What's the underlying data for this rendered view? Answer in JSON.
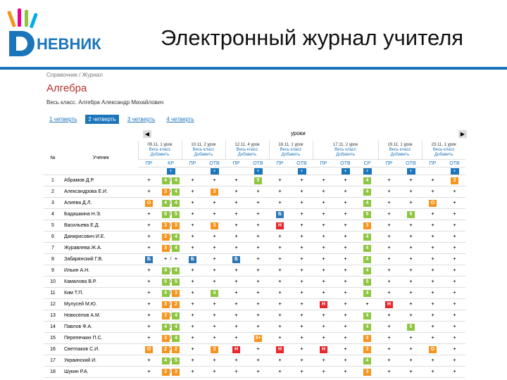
{
  "header": {
    "logo_text": "НЕВНИК",
    "title": "Электронный журнал учителя"
  },
  "breadcrumb": "Справочник / Журнал",
  "subject": "Алгебра",
  "filter": "Весь класс. Алгебра Александр Михайлович",
  "tabs": [
    "1 четверть",
    "2 четверть",
    "3 четверть",
    "4 четверть"
  ],
  "active_tab": 1,
  "nav": {
    "prev": "◀",
    "label": "уроки",
    "next": "▶"
  },
  "table": {
    "num_header": "№",
    "name_header": "Ученик",
    "group_lines": [
      "Весь класс",
      "Добавить"
    ],
    "add_symbol": "+",
    "separator": "/",
    "lessons": [
      {
        "date": "09.11, 1 урок",
        "cols": [
          "ПР",
          "КР"
        ]
      },
      {
        "date": "10.11, 2 урок",
        "cols": [
          "ПР",
          "ОТВ"
        ]
      },
      {
        "date": "12.11, 4 урок",
        "cols": [
          "ПР",
          "ОТВ"
        ]
      },
      {
        "date": "16.11, 1 урок",
        "cols": [
          "ПР",
          "ОТВ"
        ]
      },
      {
        "date": "17.11, 2 урок",
        "cols": [
          "ПР",
          "ОТВ",
          "СР"
        ]
      },
      {
        "date": "19.11, 1 урок",
        "cols": [
          "ПР",
          "ОТВ"
        ]
      },
      {
        "date": "23.11, 1 урок",
        "cols": [
          "ПР",
          "ОТВ"
        ]
      }
    ],
    "mark_colors": {
      "5": "#8dc63f",
      "4": "#8dc63f",
      "3": "#f7941d",
      "2": "#f7941d",
      "3+": "#f7941d",
      "О": "#f7941d",
      "Б": "#2e75b6",
      "Н": "#e8262a"
    },
    "rows": [
      {
        "num": "1",
        "name": "Абрамов Д.Р.",
        "marks": [
          "+",
          [
            "4",
            "4"
          ],
          "+",
          "+",
          "+",
          "5",
          "+",
          "+",
          "+",
          "+",
          "4",
          "+",
          "+",
          "+",
          "3"
        ]
      },
      {
        "num": "2",
        "name": "Александрова Е.И.",
        "marks": [
          "+",
          [
            "3",
            "4"
          ],
          "+",
          "3",
          "+",
          "+",
          "+",
          "+",
          "+",
          "+",
          "4",
          "+",
          "+",
          "+",
          "+"
        ]
      },
      {
        "num": "3",
        "name": "Алиева Д.Л.",
        "marks": [
          "О",
          [
            "4",
            "4"
          ],
          "+",
          "+",
          "+",
          "+",
          "+",
          "+",
          "+",
          "+",
          "4",
          "+",
          "+",
          "О",
          "+"
        ]
      },
      {
        "num": "4",
        "name": "Бадашкина Н.Э.",
        "marks": [
          "+",
          [
            "5",
            "5"
          ],
          "+",
          "+",
          "+",
          "+",
          "Б",
          "+",
          "+",
          "+",
          "5",
          "+",
          "5",
          "+",
          "+"
        ]
      },
      {
        "num": "5",
        "name": "Васильева Е.Д.",
        "marks": [
          "+",
          [
            "3",
            "3"
          ],
          "+",
          "3",
          "+",
          "+",
          "Н",
          "+",
          "+",
          "+",
          "3",
          "+",
          "+",
          "+",
          "+"
        ]
      },
      {
        "num": "6",
        "name": "Данирисович И.Е.",
        "marks": [
          "+",
          [
            "3",
            "4"
          ],
          "+",
          "+",
          "+",
          "+",
          "+",
          "+",
          "+",
          "+",
          "4",
          "+",
          "+",
          "+",
          "+"
        ]
      },
      {
        "num": "7",
        "name": "Журавлева Ж.А.",
        "marks": [
          "+",
          [
            "3",
            "4"
          ],
          "+",
          "+",
          "+",
          "+",
          "+",
          "+",
          "+",
          "+",
          "4",
          "+",
          "+",
          "+",
          "+"
        ]
      },
      {
        "num": "8",
        "name": "Забарянский Г.В.",
        "marks": [
          "Б",
          [
            "+",
            "+"
          ],
          "Б",
          "+",
          "Б",
          "+",
          "+",
          "+",
          "+",
          "+",
          "4",
          "+",
          "+",
          "+",
          "+"
        ]
      },
      {
        "num": "9",
        "name": "Ильин А.Н.",
        "marks": [
          "+",
          [
            "4",
            "4"
          ],
          "+",
          "+",
          "+",
          "+",
          "+",
          "+",
          "+",
          "+",
          "4",
          "+",
          "+",
          "+",
          "+"
        ]
      },
      {
        "num": "10",
        "name": "Камалова В.Р.",
        "marks": [
          "+",
          [
            "5",
            "5"
          ],
          "+",
          "+",
          "+",
          "+",
          "+",
          "+",
          "+",
          "+",
          "5",
          "+",
          "+",
          "+",
          "+"
        ]
      },
      {
        "num": "11",
        "name": "Ким Т.П.",
        "marks": [
          "+",
          [
            "4",
            "3"
          ],
          "+",
          "4",
          "+",
          "+",
          "+",
          "+",
          "+",
          "+",
          "4",
          "+",
          "+",
          "+",
          "+"
        ]
      },
      {
        "num": "12",
        "name": "Мулусей М.Ю.",
        "marks": [
          "+",
          [
            "3",
            "2"
          ],
          "+",
          "+",
          "+",
          "+",
          "+",
          "+",
          "Н",
          "+",
          "+",
          "Н",
          "+",
          "+",
          "+"
        ]
      },
      {
        "num": "13",
        "name": "Новоселов А.М.",
        "marks": [
          "+",
          [
            "3",
            "4"
          ],
          "+",
          "+",
          "+",
          "+",
          "+",
          "+",
          "+",
          "+",
          "4",
          "+",
          "+",
          "+",
          "+"
        ]
      },
      {
        "num": "14",
        "name": "Павлов Ф.А.",
        "marks": [
          "+",
          [
            "4",
            "4"
          ],
          "+",
          "+",
          "+",
          "+",
          "+",
          "+",
          "+",
          "+",
          "4",
          "+",
          "5",
          "+",
          "+"
        ]
      },
      {
        "num": "15",
        "name": "Перепечкин П.С.",
        "marks": [
          "+",
          [
            "3",
            "4"
          ],
          "+",
          "+",
          "+",
          "3+",
          "+",
          "+",
          "+",
          "+",
          "3",
          "+",
          "+",
          "+",
          "+"
        ]
      },
      {
        "num": "16",
        "name": "Светлаков С.И.",
        "marks": [
          "О",
          [
            "2",
            "2"
          ],
          "+",
          "3",
          "Н",
          "+",
          "Н",
          "+",
          "Н",
          "+",
          "3",
          "+",
          "+",
          "О",
          "+"
        ]
      },
      {
        "num": "17",
        "name": "Украинский И.",
        "marks": [
          "+",
          [
            "4",
            "5"
          ],
          "+",
          "+",
          "+",
          "+",
          "+",
          "+",
          "+",
          "+",
          "4",
          "+",
          "+",
          "+",
          "+"
        ]
      },
      {
        "num": "18",
        "name": "Шукин Р.А.",
        "marks": [
          "+",
          [
            "3",
            "3"
          ],
          "+",
          "+",
          "+",
          "+",
          "+",
          "+",
          "+",
          "+",
          "3",
          "+",
          "+",
          "+",
          "+"
        ]
      }
    ]
  }
}
